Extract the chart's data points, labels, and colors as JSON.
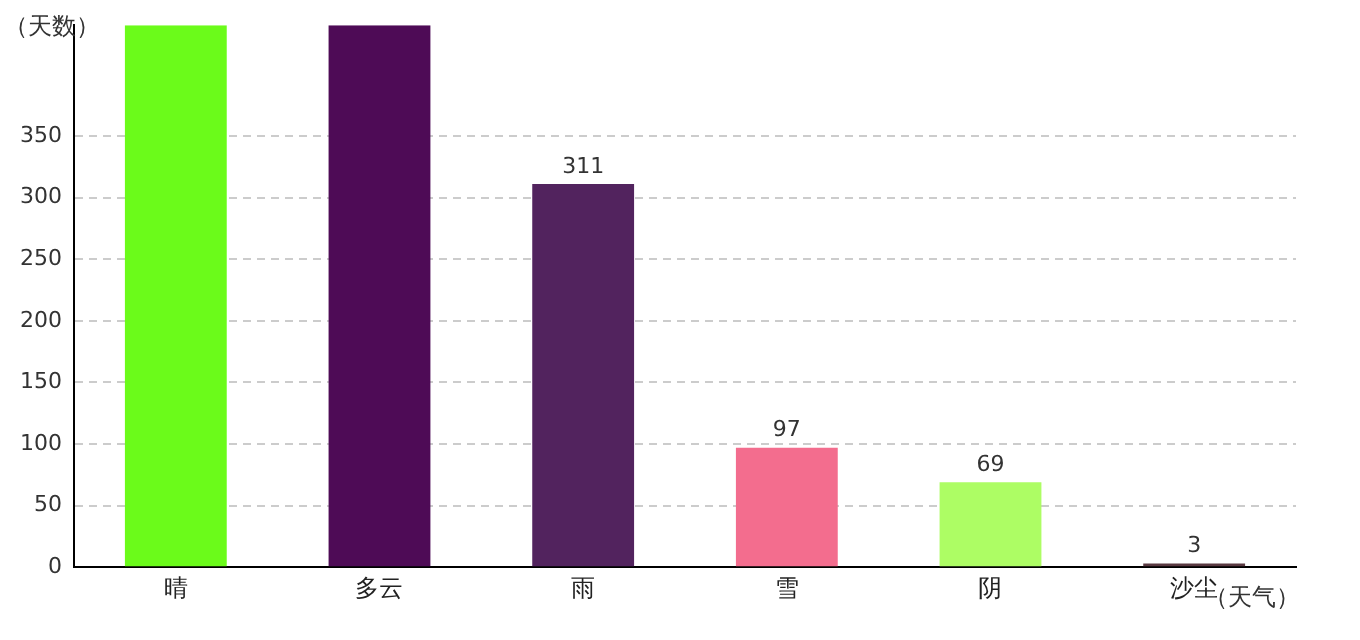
{
  "chart_data": {
    "type": "bar",
    "ylabel": "（天数）",
    "xlabel": "（天气）",
    "categories": [
      "晴",
      "多云",
      "雨",
      "雪",
      "阴",
      "沙尘"
    ],
    "values": [
      440,
      440,
      311,
      97,
      69,
      3
    ],
    "colors": [
      "#6bfb1a",
      "#4e0b56",
      "#52235e",
      "#f36d8e",
      "#adfd64",
      "#5a3a42"
    ],
    "value_labels": [
      null,
      null,
      "311",
      "97",
      "69",
      "3"
    ],
    "ylim": [
      0,
      440
    ],
    "yticks": [
      0,
      50,
      100,
      150,
      200,
      250,
      300,
      350
    ],
    "grid": "y"
  }
}
